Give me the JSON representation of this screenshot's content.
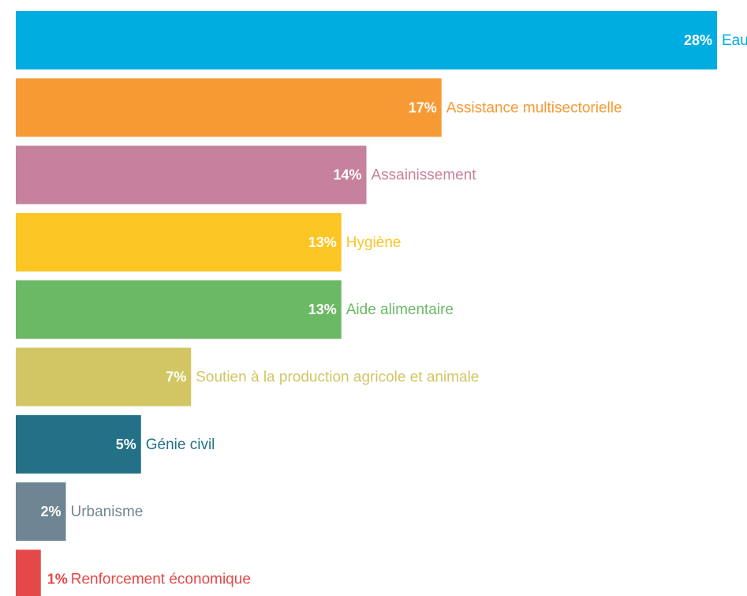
{
  "chart_data": {
    "type": "bar",
    "orientation": "horizontal",
    "categories": [
      "Eau",
      "Assistance multisectorielle",
      "Assainissement",
      "Hygiène",
      "Aide alimentaire",
      "Soutien à la production agricole et animale",
      "Génie civil",
      "Urbanisme",
      "Renforcement économique"
    ],
    "values": [
      28,
      17,
      14,
      13,
      13,
      7,
      5,
      2,
      1
    ],
    "value_labels": [
      "28%",
      "17%",
      "14%",
      "13%",
      "13%",
      "7%",
      "5%",
      "2%",
      "1%"
    ],
    "colors": [
      "#00ade0",
      "#f79a33",
      "#c6819d",
      "#fbc523",
      "#6bb965",
      "#d1c663",
      "#237087",
      "#6f8593",
      "#e44848"
    ],
    "unit": "%",
    "xlim": [
      0,
      28
    ],
    "grid": false,
    "legend": "none",
    "title": "",
    "xlabel": "",
    "ylabel": ""
  }
}
